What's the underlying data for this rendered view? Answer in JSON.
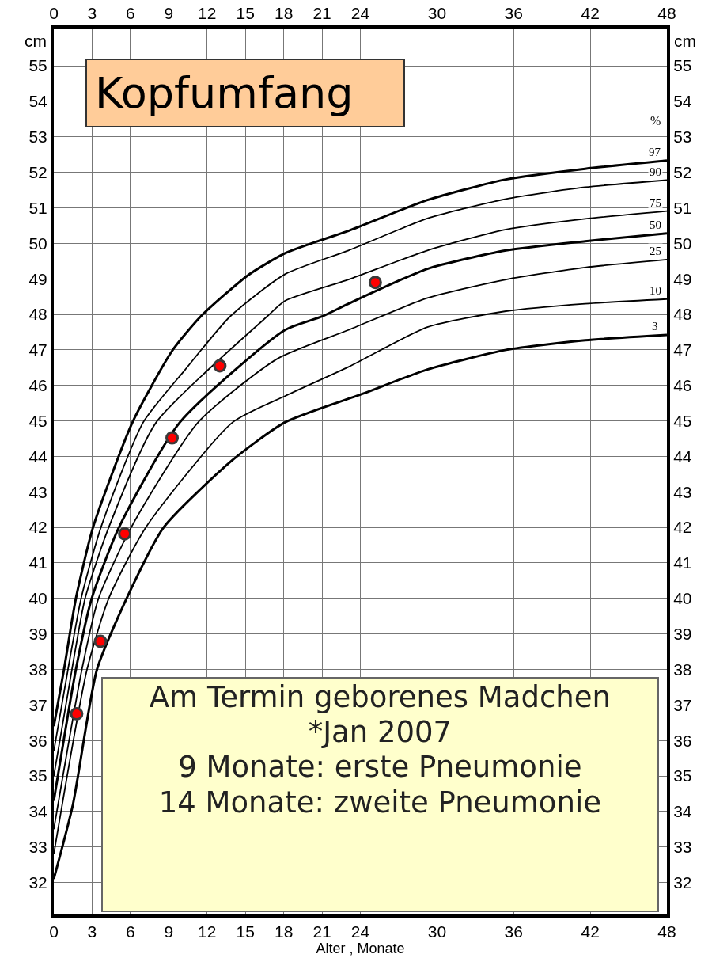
{
  "chart_data": {
    "type": "line",
    "title": "Kopfumfang",
    "xlabel": "Alter , Monate",
    "ylabel": "cm",
    "y2label": "cm",
    "annotations": [
      "%",
      "Am Termin geborenes Madchen\n*Jan 2007\n9 Monate: erste Pneumonie\n14 Monate: zweite Pneumonie"
    ],
    "xlim": [
      0,
      48
    ],
    "xticks": [
      0,
      3,
      6,
      9,
      12,
      15,
      18,
      21,
      24,
      30,
      36,
      42,
      48
    ],
    "x2lim": [
      0,
      48
    ],
    "x2ticks": [
      0,
      3,
      6,
      9,
      12,
      15,
      18,
      21,
      24,
      30,
      36,
      42,
      48
    ],
    "ylim": [
      31.1,
      56.05
    ],
    "yticks": [
      32,
      33,
      34,
      35,
      36,
      37,
      38,
      39,
      40,
      41,
      42,
      43,
      44,
      45,
      46,
      47,
      48,
      49,
      50,
      51,
      52,
      53,
      54,
      55
    ],
    "y2lim": [
      31.1,
      56.05
    ],
    "y2ticks": [
      32,
      33,
      34,
      35,
      36,
      37,
      38,
      39,
      40,
      41,
      42,
      43,
      44,
      45,
      46,
      47,
      48,
      49,
      50,
      51,
      52,
      53,
      54,
      55
    ],
    "grid": true,
    "legend": false,
    "line_style": "solid",
    "series": [
      {
        "name": "97",
        "marker": "none",
        "color": "#000000",
        "x": [
          0,
          0.8,
          1.73,
          3.07,
          6.16,
          9.26,
          11.5,
          15.2,
          18.1,
          21,
          23.07,
          29.25,
          35.4,
          41.6,
          48
        ],
        "values": [
          36.4,
          38,
          40,
          42,
          44.96,
          46.97,
          47.94,
          49.1,
          49.72,
          50.1,
          50.35,
          51.22,
          51.8,
          52.1,
          52.33
        ]
      },
      {
        "name": "90",
        "marker": "none",
        "color": "#000000",
        "x": [
          0,
          1.11,
          2.14,
          3.69,
          7,
          10.3,
          13.8,
          18.1,
          23.07,
          29.25,
          35.4,
          41.6,
          48
        ],
        "values": [
          35.7,
          38,
          40,
          42,
          44.96,
          46.45,
          47.94,
          49.13,
          49.8,
          50.7,
          51.25,
          51.58,
          51.78
        ]
      },
      {
        "name": "75",
        "marker": "none",
        "color": "#000000",
        "x": [
          0,
          1.42,
          2.45,
          4.3,
          8.02,
          16.7,
          18.1,
          23.07,
          29.25,
          35.4,
          41.6,
          48
        ],
        "values": [
          35,
          38,
          40,
          42,
          44.96,
          47.94,
          48.38,
          48.98,
          49.8,
          50.39,
          50.69,
          50.91
        ]
      },
      {
        "name": "50",
        "marker": "none",
        "color": "#000000",
        "x": [
          0,
          1.73,
          2.97,
          5.1,
          9.87,
          18.1,
          21,
          23.07,
          29.25,
          35.4,
          41.6,
          48
        ],
        "values": [
          34.3,
          38,
          40,
          42,
          44.96,
          47.56,
          47.94,
          48.3,
          49.28,
          49.8,
          50.06,
          50.28
        ]
      },
      {
        "name": "25",
        "marker": "none",
        "color": "#000000",
        "x": [
          0,
          2.2,
          3.5,
          6.06,
          11.3,
          17.5,
          23.07,
          29.25,
          35.4,
          41.6,
          48
        ],
        "values": [
          33.5,
          38,
          40,
          42,
          44.96,
          46.75,
          47.56,
          48.46,
          48.98,
          49.32,
          49.54
        ]
      },
      {
        "name": "10",
        "marker": "none",
        "color": "#000000",
        "x": [
          0,
          2.6,
          4.3,
          7.2,
          14,
          18.1,
          23.07,
          29.25,
          35.4,
          41.6,
          48
        ],
        "values": [
          32.8,
          38,
          40,
          42,
          44.96,
          45.7,
          46.52,
          47.64,
          48.09,
          48.3,
          48.43
        ]
      },
      {
        "name": "3",
        "marker": "none",
        "color": "#000000",
        "x": [
          0,
          1.5,
          3.38,
          5.7,
          8.6,
          14,
          18.1,
          24.3,
          29.25,
          35.4,
          41.6,
          48
        ],
        "values": [
          32.1,
          34.2,
          38,
          40,
          42,
          43.9,
          44.96,
          45.78,
          46.45,
          47,
          47.27,
          47.42
        ]
      },
      {
        "type": "scatter",
        "marker": "circle",
        "color": "#ff0000",
        "x": [
          1.79,
          3.65,
          5.55,
          9.26,
          13,
          25.17
        ],
        "values": [
          36.75,
          38.79,
          41.82,
          44.52,
          46.55,
          48.9
        ]
      }
    ]
  }
}
